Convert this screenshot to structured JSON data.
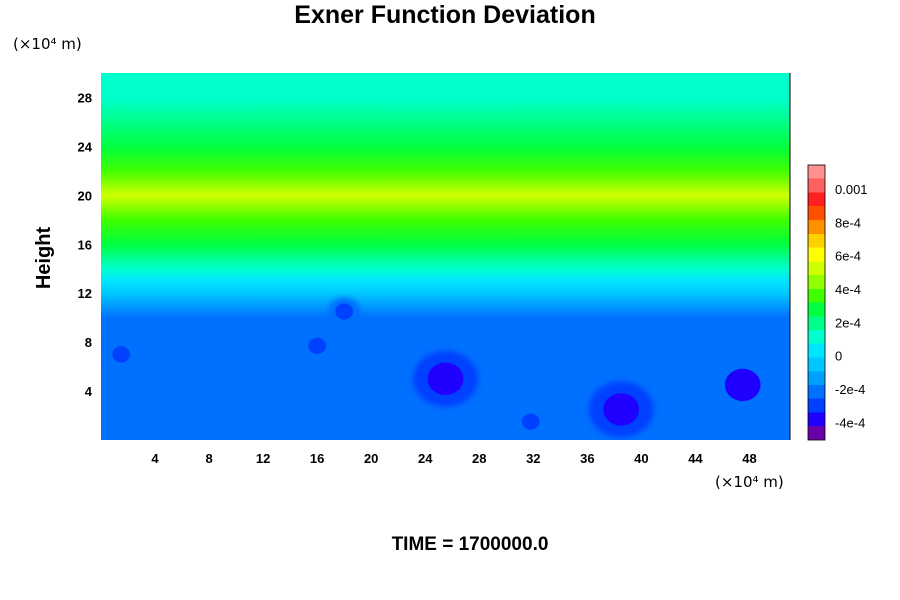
{
  "chart_data": {
    "type": "heatmap",
    "title": "Exner Function Deviation",
    "ylabel": "Height",
    "x_unit": "(×10⁴ m)",
    "y_unit": "(×10⁴ m)",
    "time_label": "TIME = 1700000.0",
    "xlim": [
      0,
      51
    ],
    "ylim": [
      0,
      30
    ],
    "x_ticks": [
      "4",
      "8",
      "12",
      "16",
      "20",
      "24",
      "28",
      "32",
      "36",
      "40",
      "44",
      "48"
    ],
    "x_tick_values": [
      4,
      8,
      12,
      16,
      20,
      24,
      28,
      32,
      36,
      40,
      44,
      48
    ],
    "y_ticks": [
      "4",
      "8",
      "12",
      "16",
      "20",
      "24",
      "28"
    ],
    "y_tick_values": [
      4,
      8,
      12,
      16,
      20,
      24,
      28
    ],
    "colorbar": {
      "range": [
        -0.0005,
        0.00115
      ],
      "tick_labels": [
        "0.001",
        "8e-4",
        "6e-4",
        "4e-4",
        "2e-4",
        "0",
        "-2e-4",
        "-4e-4"
      ],
      "tick_values": [
        0.001,
        0.0008,
        0.0006,
        0.0004,
        0.0002,
        0,
        -0.0002,
        -0.0004
      ],
      "colors": [
        "#6a00aa",
        "#1f00ff",
        "#0040ff",
        "#0070ff",
        "#00a0ff",
        "#00c8ff",
        "#00e5ff",
        "#00ffcc",
        "#00ff88",
        "#00ff40",
        "#40ff00",
        "#90ff00",
        "#d0ff00",
        "#ffff00",
        "#ffd000",
        "#ff9000",
        "#ff5000",
        "#ff2020",
        "#ff6060",
        "#ff9090"
      ]
    },
    "vertical_profile": [
      {
        "height": 0,
        "value": -0.0002
      },
      {
        "height": 10,
        "value": -0.0002
      },
      {
        "height": 12,
        "value": -5e-05
      },
      {
        "height": 13,
        "value": 5e-05
      },
      {
        "height": 14,
        "value": 0.00012
      },
      {
        "height": 16,
        "value": 0.0003
      },
      {
        "height": 18,
        "value": 0.0004
      },
      {
        "height": 20,
        "value": 0.00055
      },
      {
        "height": 22,
        "value": 0.0004
      },
      {
        "height": 24,
        "value": 0.0003
      },
      {
        "height": 26,
        "value": 0.0002
      },
      {
        "height": 28,
        "value": 0.00015
      },
      {
        "height": 30,
        "value": 0.00012
      }
    ],
    "anomalies": [
      {
        "x": 25.5,
        "y": 5,
        "value": -0.0004
      },
      {
        "x": 38.5,
        "y": 2.5,
        "value": -0.0004
      },
      {
        "x": 47.5,
        "y": 4.5,
        "value": -0.00035
      },
      {
        "x": 31.8,
        "y": 1.5,
        "value": -0.0003
      },
      {
        "x": 1.5,
        "y": 7,
        "value": -0.0003
      },
      {
        "x": 16,
        "y": 7.7,
        "value": -0.0003
      },
      {
        "x": 18,
        "y": 10.5,
        "value": -0.0003
      }
    ]
  }
}
